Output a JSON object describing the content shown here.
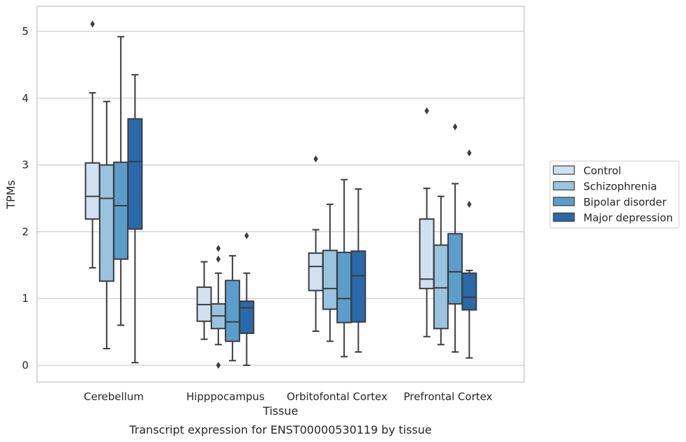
{
  "chart_data": {
    "type": "boxplot",
    "xlabel": "Tissue",
    "ylabel": "TPMs",
    "caption": "Transcript expression for ENST00000530119 by tissue",
    "ylim": [
      -0.25,
      5.38
    ],
    "yticks": [
      0,
      1,
      2,
      3,
      4,
      5
    ],
    "grid": "horizontal",
    "legend_position": "right",
    "categories": [
      "Cerebellum",
      "Hipppocampus",
      "Orbitofontal Cortex",
      "Prefrontal Cortex"
    ],
    "series": [
      {
        "name": "Control",
        "color": "#d1e1f2",
        "boxes": [
          {
            "whislo": 1.46,
            "q1": 2.19,
            "med": 2.53,
            "q3": 3.03,
            "whishi": 4.08,
            "fliers": [
              5.11
            ]
          },
          {
            "whislo": 0.39,
            "q1": 0.66,
            "med": 0.91,
            "q3": 1.17,
            "whishi": 1.55,
            "fliers": []
          },
          {
            "whislo": 0.51,
            "q1": 1.12,
            "med": 1.48,
            "q3": 1.68,
            "whishi": 2.03,
            "fliers": [
              3.09
            ]
          },
          {
            "whislo": 0.43,
            "q1": 1.15,
            "med": 1.29,
            "q3": 2.19,
            "whishi": 2.65,
            "fliers": [
              3.81
            ]
          }
        ]
      },
      {
        "name": "Schizophrenia",
        "color": "#99c3df",
        "boxes": [
          {
            "whislo": 0.25,
            "q1": 1.26,
            "med": 2.5,
            "q3": 3.0,
            "whishi": 3.95,
            "fliers": []
          },
          {
            "whislo": 0.31,
            "q1": 0.55,
            "med": 0.74,
            "q3": 0.92,
            "whishi": 1.38,
            "fliers": [
              1.75,
              1.59,
              0.0
            ]
          },
          {
            "whislo": 0.36,
            "q1": 0.84,
            "med": 1.15,
            "q3": 1.72,
            "whishi": 2.41,
            "fliers": []
          },
          {
            "whislo": 0.31,
            "q1": 0.55,
            "med": 1.16,
            "q3": 1.8,
            "whishi": 2.53,
            "fliers": []
          }
        ]
      },
      {
        "name": "Bipolar disorder",
        "color": "#5b9dcb",
        "boxes": [
          {
            "whislo": 0.6,
            "q1": 1.59,
            "med": 2.39,
            "q3": 3.04,
            "whishi": 4.92,
            "fliers": []
          },
          {
            "whislo": 0.07,
            "q1": 0.36,
            "med": 0.65,
            "q3": 1.27,
            "whishi": 1.64,
            "fliers": []
          },
          {
            "whislo": 0.13,
            "q1": 0.64,
            "med": 1.0,
            "q3": 1.69,
            "whishi": 2.78,
            "fliers": []
          },
          {
            "whislo": 0.2,
            "q1": 0.92,
            "med": 1.4,
            "q3": 1.97,
            "whishi": 2.72,
            "fliers": [
              3.57
            ]
          }
        ]
      },
      {
        "name": "Major depression",
        "color": "#2a69aa",
        "boxes": [
          {
            "whislo": 0.04,
            "q1": 2.04,
            "med": 3.05,
            "q3": 3.69,
            "whishi": 4.35,
            "fliers": []
          },
          {
            "whislo": 0.0,
            "q1": 0.48,
            "med": 0.86,
            "q3": 0.96,
            "whishi": 1.38,
            "fliers": [
              1.94
            ]
          },
          {
            "whislo": 0.2,
            "q1": 0.65,
            "med": 1.34,
            "q3": 1.71,
            "whishi": 2.64,
            "fliers": []
          },
          {
            "whislo": 0.11,
            "q1": 0.83,
            "med": 1.02,
            "q3": 1.38,
            "whishi": 1.42,
            "fliers": [
              3.18,
              2.41
            ]
          }
        ]
      }
    ]
  },
  "colors": {
    "edge": "#3c3c3c",
    "grid": "#cccccc",
    "frame": "#cccccc"
  }
}
